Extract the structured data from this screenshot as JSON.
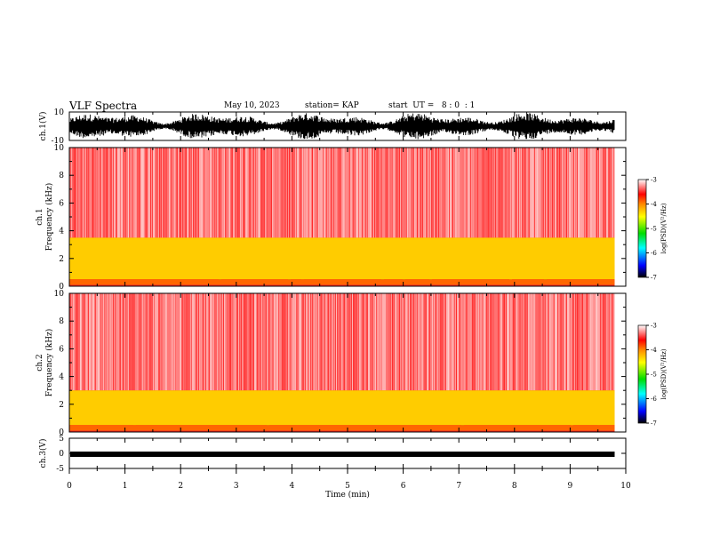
{
  "header": {
    "title": "VLF Spectra",
    "date": "May 10, 2023",
    "station": "station= KAP",
    "start": "start  UT =   8 : 0  : 1"
  },
  "chart_data": [
    {
      "type": "line",
      "name": "ch1-waveform",
      "ylabel": "ch.1(V)",
      "ylim": [
        -10,
        10
      ],
      "yticks": [
        "10",
        "-10"
      ],
      "xlim": [
        0,
        10
      ],
      "x_end": 9.8
    },
    {
      "type": "heatmap",
      "name": "ch1-spectrogram",
      "ylabel": "ch.1\nFrequency (kHz)",
      "ylim": [
        0,
        10
      ],
      "yticks": [
        "0",
        "2",
        "4",
        "6",
        "8",
        "10"
      ],
      "xlim": [
        0,
        10
      ],
      "x_end": 9.8,
      "bands": [
        {
          "from_khz": 0.1,
          "to_khz": 0.5,
          "level": "red-orange"
        },
        {
          "from_khz": 0.5,
          "to_khz": 3.5,
          "level": "yellow-green"
        },
        {
          "from_khz": 3.5,
          "to_khz": 10,
          "level": "red"
        }
      ],
      "colorbar": {
        "label": "log(PSD)(V²/Hz)",
        "range": [
          -7,
          -3
        ],
        "ticks": [
          "-3",
          "-4",
          "-5",
          "-6",
          "-7"
        ]
      }
    },
    {
      "type": "heatmap",
      "name": "ch2-spectrogram",
      "ylabel": "ch.2\nFrequency (kHz)",
      "ylim": [
        0,
        10
      ],
      "yticks": [
        "0",
        "2",
        "4",
        "6",
        "8",
        "10"
      ],
      "xlim": [
        0,
        10
      ],
      "x_end": 9.8,
      "bands": [
        {
          "from_khz": 0.1,
          "to_khz": 0.5,
          "level": "red-orange"
        },
        {
          "from_khz": 0.5,
          "to_khz": 3.0,
          "level": "yellow-green"
        },
        {
          "from_khz": 3.0,
          "to_khz": 10,
          "level": "red"
        }
      ],
      "colorbar": {
        "label": "log(PSD)(V²/Hz)",
        "range": [
          -7,
          -3
        ],
        "ticks": [
          "-3",
          "-4",
          "-5",
          "-6",
          "-7"
        ]
      }
    },
    {
      "type": "line",
      "name": "ch3-waveform",
      "ylabel": "ch.3(V)",
      "ylim": [
        -5,
        5
      ],
      "yticks": [
        "5",
        "0",
        "-5"
      ],
      "xlim": [
        0,
        10
      ],
      "x_end": 9.8
    }
  ],
  "xaxis": {
    "label": "Time (min)",
    "ticks": [
      "0",
      "1",
      "2",
      "3",
      "4",
      "5",
      "6",
      "7",
      "8",
      "9",
      "10"
    ]
  },
  "colors": {
    "red": "#ff1a1a",
    "orange": "#ff8800",
    "yellow": "#ffff00",
    "green": "#00dd00",
    "cyan": "#00ffff",
    "blue": "#0000ff",
    "black": "#000000"
  }
}
